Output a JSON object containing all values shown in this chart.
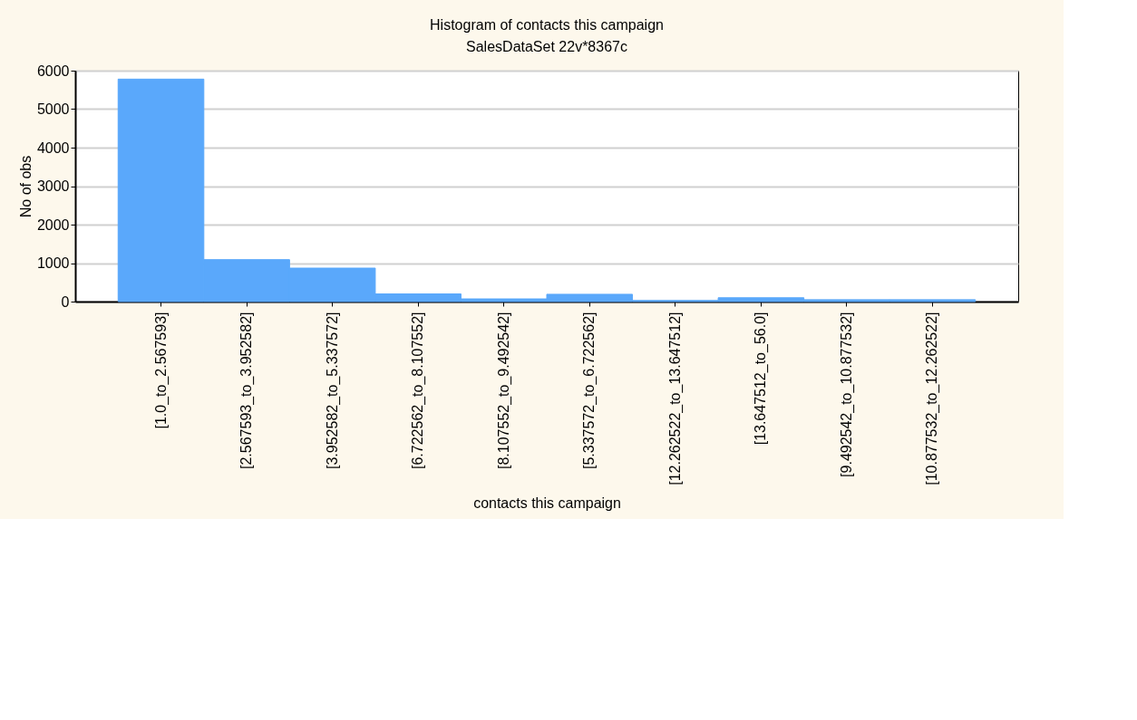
{
  "chart_data": {
    "type": "bar",
    "title": "Histogram of contacts this campaign",
    "subtitle": "SalesDataSet 22v*8367c",
    "xlabel": "contacts this campaign",
    "ylabel": "No of obs",
    "categories": [
      "[1.0_to_2.567593]",
      "[2.567593_to_3.952582]",
      "[3.952582_to_5.337572]",
      "[6.722562_to_8.107552]",
      "[8.107552_to_9.492542]",
      "[5.337572_to_6.722562]",
      "[12.262522_to_13.647512]",
      "[13.647512_to_56.0]",
      "[9.492542_to_10.877532]",
      "[10.877532_to_12.262522]"
    ],
    "series": [
      {
        "color": "#5aa8fb",
        "values": [
          5780,
          1090,
          870,
          200,
          70,
          190,
          30,
          100,
          50,
          50
        ]
      }
    ],
    "ylim": [
      0,
      6000
    ],
    "yticks": [
      0,
      1000,
      2000,
      3000,
      4000,
      5000,
      6000
    ],
    "grid": "y"
  }
}
